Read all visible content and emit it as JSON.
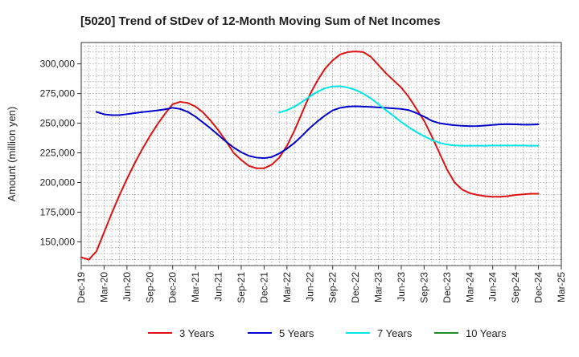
{
  "chart_data": {
    "type": "line",
    "title": "[5020]  Trend of StDev of 12-Month Moving Sum of Net Incomes",
    "xlabel": "",
    "ylabel": "Amount (million yen)",
    "ylim": [
      130000,
      318000
    ],
    "yticks": [
      150000,
      175000,
      200000,
      225000,
      250000,
      275000,
      300000
    ],
    "ytick_labels": [
      "150,000",
      "175,000",
      "200,000",
      "225,000",
      "250,000",
      "275,000",
      "300,000"
    ],
    "xlim": [
      "2019-12",
      "2025-03"
    ],
    "xtick_labels": [
      "Dec-19",
      "Mar-20",
      "Jun-20",
      "Sep-20",
      "Dec-20",
      "Mar-21",
      "Jun-21",
      "Sep-21",
      "Dec-21",
      "Mar-22",
      "Jun-22",
      "Sep-22",
      "Dec-22",
      "Mar-23",
      "Jun-23",
      "Sep-23",
      "Dec-23",
      "Mar-24",
      "Jun-24",
      "Sep-24",
      "Dec-24",
      "Mar-25"
    ],
    "grid": true,
    "legend_position": "bottom",
    "series": [
      {
        "name": "3 Years",
        "color": "#dd1111",
        "points": [
          [
            "2019-12",
            137000
          ],
          [
            "2020-01",
            135000
          ],
          [
            "2020-02",
            142000
          ],
          [
            "2020-03",
            158000
          ],
          [
            "2020-04",
            174000
          ],
          [
            "2020-05",
            189000
          ],
          [
            "2020-06",
            203000
          ],
          [
            "2020-07",
            216000
          ],
          [
            "2020-08",
            228000
          ],
          [
            "2020-09",
            239000
          ],
          [
            "2020-10",
            249000
          ],
          [
            "2020-11",
            258000
          ],
          [
            "2020-12",
            266000
          ],
          [
            "2021-01",
            268000
          ],
          [
            "2021-02",
            267000
          ],
          [
            "2021-03",
            264000
          ],
          [
            "2021-04",
            259000
          ],
          [
            "2021-05",
            252000
          ],
          [
            "2021-06",
            244000
          ],
          [
            "2021-07",
            235000
          ],
          [
            "2021-08",
            225000
          ],
          [
            "2021-09",
            219000
          ],
          [
            "2021-10",
            214000
          ],
          [
            "2021-11",
            212000
          ],
          [
            "2021-12",
            212000
          ],
          [
            "2022-01",
            215000
          ],
          [
            "2022-02",
            221000
          ],
          [
            "2022-03",
            231000
          ],
          [
            "2022-04",
            244000
          ],
          [
            "2022-05",
            259000
          ],
          [
            "2022-06",
            274000
          ],
          [
            "2022-07",
            286000
          ],
          [
            "2022-08",
            296000
          ],
          [
            "2022-09",
            303000
          ],
          [
            "2022-10",
            308000
          ],
          [
            "2022-11",
            310000
          ],
          [
            "2022-12",
            310500
          ],
          [
            "2023-01",
            310000
          ],
          [
            "2023-02",
            306000
          ],
          [
            "2023-03",
            299000
          ],
          [
            "2023-04",
            292000
          ],
          [
            "2023-05",
            286000
          ],
          [
            "2023-06",
            280000
          ],
          [
            "2023-07",
            272000
          ],
          [
            "2023-08",
            262000
          ],
          [
            "2023-09",
            252000
          ],
          [
            "2023-10",
            239000
          ],
          [
            "2023-11",
            225000
          ],
          [
            "2023-12",
            211000
          ],
          [
            "2024-01",
            200000
          ],
          [
            "2024-02",
            194000
          ],
          [
            "2024-03",
            191000
          ],
          [
            "2024-04",
            189500
          ],
          [
            "2024-05",
            188500
          ],
          [
            "2024-06",
            188000
          ],
          [
            "2024-07",
            188000
          ],
          [
            "2024-08",
            188500
          ],
          [
            "2024-09",
            189500
          ],
          [
            "2024-10",
            190000
          ],
          [
            "2024-11",
            190500
          ],
          [
            "2024-12",
            190500
          ]
        ]
      },
      {
        "name": "5 Years",
        "color": "#0000cc",
        "points": [
          [
            "2020-02",
            259500
          ],
          [
            "2020-03",
            257500
          ],
          [
            "2020-04",
            256800
          ],
          [
            "2020-05",
            256800
          ],
          [
            "2020-06",
            257600
          ],
          [
            "2020-07",
            258500
          ],
          [
            "2020-08",
            259300
          ],
          [
            "2020-09",
            260000
          ],
          [
            "2020-10",
            260800
          ],
          [
            "2020-11",
            261700
          ],
          [
            "2020-12",
            263000
          ],
          [
            "2021-01",
            262000
          ],
          [
            "2021-02",
            259500
          ],
          [
            "2021-03",
            255500
          ],
          [
            "2021-04",
            250500
          ],
          [
            "2021-05",
            245500
          ],
          [
            "2021-06",
            240000
          ],
          [
            "2021-07",
            234500
          ],
          [
            "2021-08",
            229500
          ],
          [
            "2021-09",
            225500
          ],
          [
            "2021-10",
            222500
          ],
          [
            "2021-11",
            221000
          ],
          [
            "2021-12",
            220500
          ],
          [
            "2022-01",
            221500
          ],
          [
            "2022-02",
            224500
          ],
          [
            "2022-03",
            228500
          ],
          [
            "2022-04",
            233500
          ],
          [
            "2022-05",
            239500
          ],
          [
            "2022-06",
            246000
          ],
          [
            "2022-07",
            251500
          ],
          [
            "2022-08",
            256500
          ],
          [
            "2022-09",
            260800
          ],
          [
            "2022-10",
            263000
          ],
          [
            "2022-11",
            264000
          ],
          [
            "2022-12",
            264200
          ],
          [
            "2023-01",
            264000
          ],
          [
            "2023-02",
            263700
          ],
          [
            "2023-03",
            263300
          ],
          [
            "2023-04",
            263000
          ],
          [
            "2023-05",
            262500
          ],
          [
            "2023-06",
            262000
          ],
          [
            "2023-07",
            261000
          ],
          [
            "2023-08",
            258500
          ],
          [
            "2023-09",
            255500
          ],
          [
            "2023-10",
            252000
          ],
          [
            "2023-11",
            250000
          ],
          [
            "2023-12",
            249000
          ],
          [
            "2024-01",
            248300
          ],
          [
            "2024-02",
            247800
          ],
          [
            "2024-03",
            247500
          ],
          [
            "2024-04",
            247600
          ],
          [
            "2024-05",
            248000
          ],
          [
            "2024-06",
            248500
          ],
          [
            "2024-07",
            249000
          ],
          [
            "2024-08",
            249200
          ],
          [
            "2024-09",
            249000
          ],
          [
            "2024-10",
            248800
          ],
          [
            "2024-11",
            248800
          ],
          [
            "2024-12",
            249000
          ]
        ]
      },
      {
        "name": "7 Years",
        "color": "#00e5e5",
        "points": [
          [
            "2022-02",
            259000
          ],
          [
            "2022-03",
            261000
          ],
          [
            "2022-04",
            264000
          ],
          [
            "2022-05",
            268000
          ],
          [
            "2022-06",
            272500
          ],
          [
            "2022-07",
            276500
          ],
          [
            "2022-08",
            279500
          ],
          [
            "2022-09",
            281000
          ],
          [
            "2022-10",
            281200
          ],
          [
            "2022-11",
            280000
          ],
          [
            "2022-12",
            278000
          ],
          [
            "2023-01",
            275000
          ],
          [
            "2023-02",
            271000
          ],
          [
            "2023-03",
            266000
          ],
          [
            "2023-04",
            261000
          ],
          [
            "2023-05",
            256000
          ],
          [
            "2023-06",
            251000
          ],
          [
            "2023-07",
            246500
          ],
          [
            "2023-08",
            242500
          ],
          [
            "2023-09",
            239000
          ],
          [
            "2023-10",
            236000
          ],
          [
            "2023-11",
            233500
          ],
          [
            "2023-12",
            232000
          ],
          [
            "2024-01",
            231300
          ],
          [
            "2024-02",
            231000
          ],
          [
            "2024-03",
            231000
          ],
          [
            "2024-04",
            231000
          ],
          [
            "2024-05",
            231000
          ],
          [
            "2024-06",
            231200
          ],
          [
            "2024-07",
            231200
          ],
          [
            "2024-08",
            231200
          ],
          [
            "2024-09",
            231200
          ],
          [
            "2024-10",
            231200
          ],
          [
            "2024-11",
            231000
          ],
          [
            "2024-12",
            231000
          ]
        ]
      },
      {
        "name": "10 Years",
        "color": "#228b22",
        "points": []
      }
    ]
  }
}
